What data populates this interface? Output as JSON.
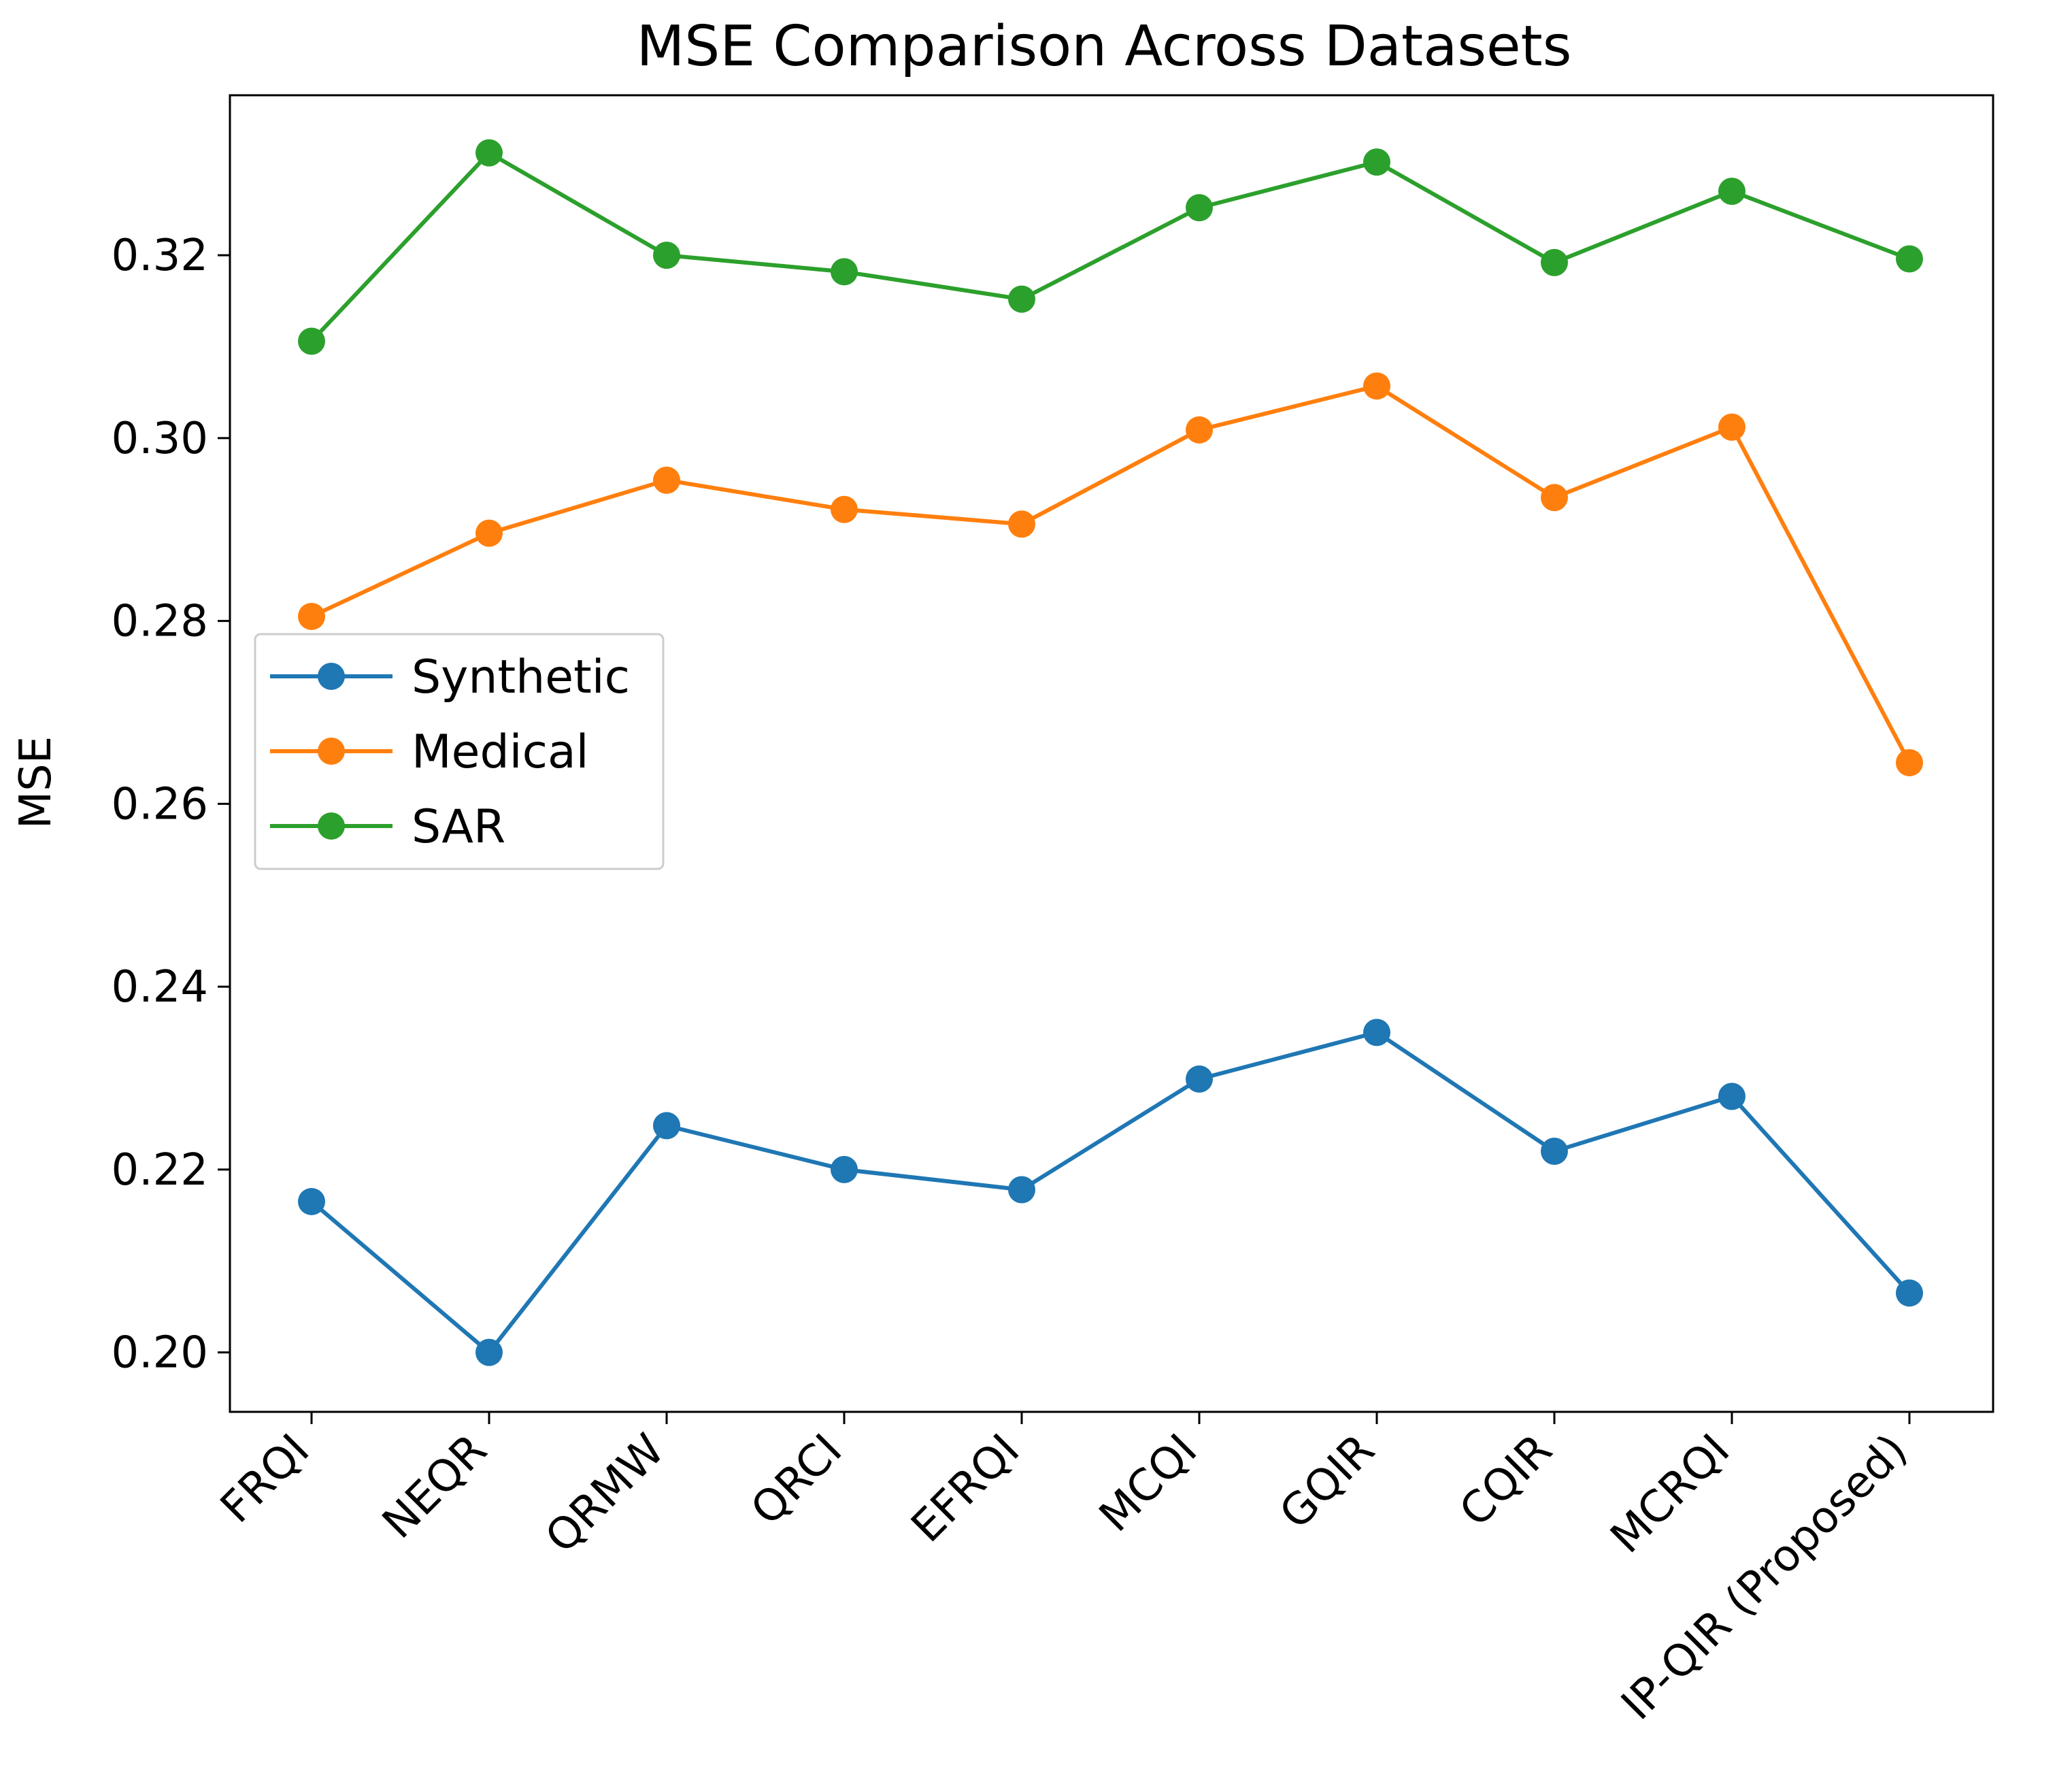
{
  "chart_data": {
    "type": "line",
    "title": "MSE Comparison Across Datasets",
    "xlabel": "",
    "ylabel": "MSE",
    "categories": [
      "FRQI",
      "NEQR",
      "QRMW",
      "QRCI",
      "EFRQI",
      "MCQI",
      "GQIR",
      "CQIR",
      "MCRQI",
      "IP-QIR (Proposed)"
    ],
    "yticks": [
      0.2,
      0.22,
      0.24,
      0.26,
      0.28,
      0.3,
      0.32
    ],
    "ytick_labels": [
      "0.20",
      "0.22",
      "0.24",
      "0.26",
      "0.28",
      "0.30",
      "0.32"
    ],
    "ylim": [
      0.1935,
      0.3375
    ],
    "grid": false,
    "legend_position": "center-left",
    "series": [
      {
        "name": "Synthetic",
        "color": "#1f77b4",
        "values": [
          0.2165,
          0.2,
          0.2248,
          0.22,
          0.2178,
          0.2299,
          0.235,
          0.222,
          0.228,
          0.2065
        ]
      },
      {
        "name": "Medical",
        "color": "#ff7f0e",
        "values": [
          0.2805,
          0.2896,
          0.2954,
          0.2922,
          0.2906,
          0.3009,
          0.3057,
          0.2935,
          0.3012,
          0.2645
        ]
      },
      {
        "name": "SAR",
        "color": "#2ca02c",
        "values": [
          0.3106,
          0.3312,
          0.32,
          0.3182,
          0.3152,
          0.3252,
          0.3302,
          0.3192,
          0.327,
          0.3196
        ]
      }
    ]
  }
}
